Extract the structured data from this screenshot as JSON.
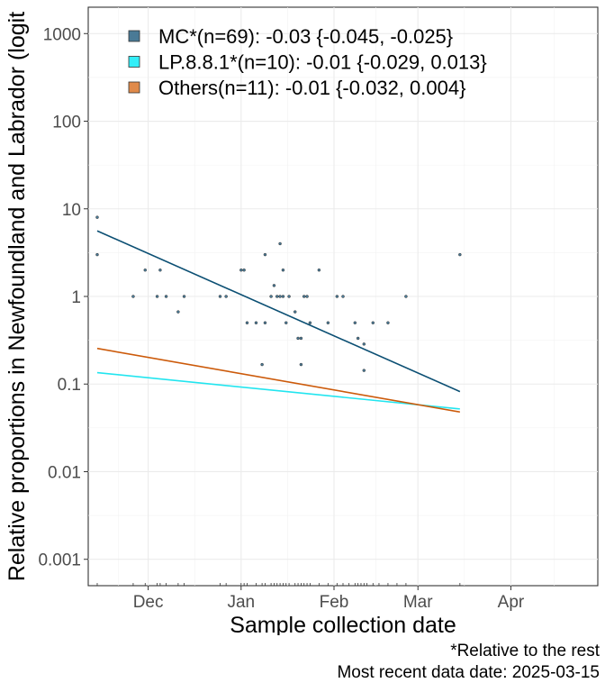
{
  "chart_data": {
    "type": "scatter",
    "title": "",
    "xlabel": "Sample collection date",
    "ylabel": "Relative proportions in Newfoundland and Labrador (logit",
    "y_scale": "log10",
    "ylim": [
      0.0005,
      2000
    ],
    "xlim": [
      "2024-11-11",
      "2025-04-30"
    ],
    "y_ticks": [
      0.001,
      0.01,
      0.1,
      1,
      10,
      100,
      1000
    ],
    "y_tick_labels": [
      "0.001",
      "0.01",
      "0.1",
      "1",
      "10",
      "100",
      "1000"
    ],
    "x_ticks": [
      "2024-12-01",
      "2025-01-01",
      "2025-02-01",
      "2025-03-01",
      "2025-04-01"
    ],
    "x_tick_labels": [
      "Dec",
      "Jan",
      "Feb",
      "Mar",
      "Apr"
    ],
    "grid": true,
    "legend_position": "top-left",
    "series": [
      {
        "name": "MC*(n=69): -0.03 {-0.045, -0.025}",
        "color": "#4a7a96",
        "line_color": "#0b4f73",
        "points": [
          [
            "2024-11-14",
            3
          ],
          [
            "2024-11-14",
            8
          ],
          [
            "2024-11-26",
            1
          ],
          [
            "2024-11-30",
            2
          ],
          [
            "2024-12-04",
            1
          ],
          [
            "2024-12-05",
            2
          ],
          [
            "2024-12-07",
            1
          ],
          [
            "2024-12-11",
            0.667
          ],
          [
            "2024-12-13",
            1
          ],
          [
            "2024-12-25",
            1
          ],
          [
            "2024-12-27",
            1
          ],
          [
            "2025-01-01",
            2
          ],
          [
            "2025-01-02",
            2
          ],
          [
            "2025-01-03",
            0.5
          ],
          [
            "2025-01-06",
            0.5
          ],
          [
            "2025-01-08",
            0.167
          ],
          [
            "2025-01-09",
            0.5
          ],
          [
            "2025-01-09",
            3
          ],
          [
            "2025-01-11",
            1
          ],
          [
            "2025-01-12",
            1.333
          ],
          [
            "2025-01-13",
            1
          ],
          [
            "2025-01-14",
            1
          ],
          [
            "2025-01-14",
            4
          ],
          [
            "2025-01-15",
            1
          ],
          [
            "2025-01-15",
            2
          ],
          [
            "2025-01-16",
            0.5
          ],
          [
            "2025-01-17",
            1
          ],
          [
            "2025-01-19",
            0.667
          ],
          [
            "2025-01-20",
            0.333
          ],
          [
            "2025-01-21",
            0.333
          ],
          [
            "2025-01-21",
            0.167
          ],
          [
            "2025-01-22",
            1
          ],
          [
            "2025-01-23",
            1
          ],
          [
            "2025-01-24",
            0.5
          ],
          [
            "2025-01-27",
            2
          ],
          [
            "2025-01-30",
            0.5
          ],
          [
            "2025-02-02",
            1
          ],
          [
            "2025-02-04",
            1
          ],
          [
            "2025-02-08",
            0.5
          ],
          [
            "2025-02-09",
            0.333
          ],
          [
            "2025-02-11",
            0.286
          ],
          [
            "2025-02-11",
            0.143
          ],
          [
            "2025-02-14",
            0.5
          ],
          [
            "2025-02-19",
            0.5
          ],
          [
            "2025-02-25",
            1
          ],
          [
            "2025-03-15",
            3
          ]
        ],
        "fit": [
          [
            "2024-11-14",
            5.6
          ],
          [
            "2025-03-15",
            0.082
          ]
        ]
      },
      {
        "name": "LP.8.8.1*(n=10): -0.01 {-0.029, 0.013}",
        "color": "#33eef8",
        "line_color": "#22e5ef",
        "points": [],
        "fit": [
          [
            "2024-11-14",
            0.135
          ],
          [
            "2025-03-15",
            0.052
          ]
        ]
      },
      {
        "name": "Others(n=11): -0.01 {-0.032, 0.004}",
        "color": "#e08a4a",
        "line_color": "#cc5a0a",
        "points": [],
        "fit": [
          [
            "2024-11-14",
            0.255
          ],
          [
            "2025-03-15",
            0.048
          ]
        ]
      }
    ],
    "rug_dates": [
      "2024-11-14",
      "2024-11-26",
      "2024-11-30",
      "2024-12-04",
      "2024-12-05",
      "2024-12-07",
      "2024-12-11",
      "2024-12-13",
      "2024-12-25",
      "2024-12-27",
      "2025-01-01",
      "2025-01-02",
      "2025-01-03",
      "2025-01-06",
      "2025-01-08",
      "2025-01-09",
      "2025-01-11",
      "2025-01-12",
      "2025-01-13",
      "2025-01-14",
      "2025-01-15",
      "2025-01-16",
      "2025-01-17",
      "2025-01-19",
      "2025-01-20",
      "2025-01-21",
      "2025-01-22",
      "2025-01-23",
      "2025-01-24",
      "2025-01-27",
      "2025-01-30",
      "2025-02-02",
      "2025-02-04",
      "2025-02-06",
      "2025-02-08",
      "2025-02-09",
      "2025-02-10",
      "2025-02-11",
      "2025-02-12",
      "2025-02-14",
      "2025-02-16",
      "2025-02-19",
      "2025-02-22",
      "2025-02-25",
      "2025-03-15"
    ]
  },
  "caption": {
    "line1": "*Relative to the rest",
    "line2": "Most recent data date: 2025-03-15"
  }
}
